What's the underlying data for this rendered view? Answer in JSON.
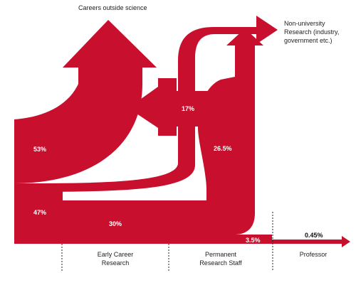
{
  "colors": {
    "accent": "#c8102e",
    "text": "#222222",
    "label_on_flow": "#ffffff"
  },
  "destinations": {
    "outside_science": "Careers outside science",
    "non_university": [
      "Non-university",
      "Research (industry,",
      "government etc.)"
    ]
  },
  "stages": {
    "early_career": [
      "Early Career",
      "Research"
    ],
    "permanent_staff": [
      "Permanent",
      "Research Staff"
    ],
    "professor": "Professor"
  },
  "percentages": {
    "to_outside_from_start": "53%",
    "continue_from_start": "47%",
    "early_to_permanent": "30%",
    "outside_from_permanent_stage": "17%",
    "permanent_to_non_university": "26.5%",
    "permanent_to_professor": "3.5%",
    "professor": "0.45%"
  }
}
